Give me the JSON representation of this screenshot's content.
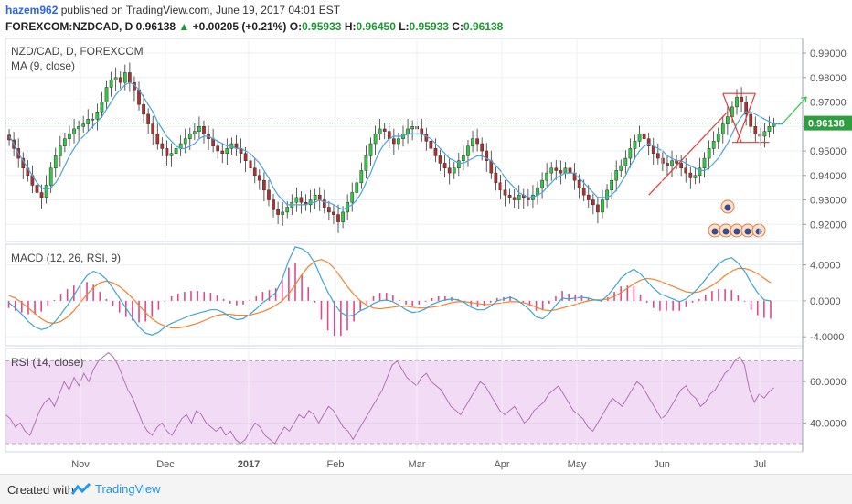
{
  "header": {
    "username": "hazem962",
    "published_text": "published on TradingView.com, June 19, 2017 04:01 EST",
    "symbol_line_prefix": "FOREXCOM:NZDCAD, D",
    "last_price": "0.96138",
    "change": "+0.00205 (+0.21%)",
    "open_label": "O:",
    "open": "0.95933",
    "high_label": "H:",
    "high": "0.96450",
    "low_label": "L:",
    "low": "0.95933",
    "close_label": "C:",
    "close": "0.96138"
  },
  "footer": {
    "created_with": "Created with",
    "brand": "TradingView"
  },
  "colors": {
    "bull": "#2ecc40",
    "bear": "#b03030",
    "ma": "#4aa3df",
    "macd": "#3aa5d8",
    "signal": "#f5802a",
    "hist": "#e0478f",
    "rsi": "#b56fb8",
    "rsi_band": "#f2dcf5",
    "trend": "#e53935",
    "arrow": "#2ecc40"
  },
  "chart_data": [
    {
      "type": "candlestick",
      "title": "NZD/CAD, D, FOREXCOM",
      "indicator_label": "MA (9, close)",
      "y_ticks": [
        "0.92000",
        "0.93000",
        "0.94000",
        "0.95000",
        "0.96000",
        "0.97000",
        "0.98000",
        "0.99000"
      ],
      "ylim": [
        0.913,
        0.996
      ],
      "last_price_label": "0.96138",
      "x_ticks": [
        "Nov",
        "Dec",
        "2017",
        "Feb",
        "Mar",
        "Apr",
        "May",
        "Jun",
        "Jul"
      ],
      "close_series": [
        0.9545,
        0.951,
        0.947,
        0.943,
        0.94,
        0.936,
        0.933,
        0.931,
        0.936,
        0.943,
        0.948,
        0.952,
        0.955,
        0.957,
        0.959,
        0.96,
        0.961,
        0.963,
        0.963,
        0.966,
        0.97,
        0.976,
        0.979,
        0.98,
        0.978,
        0.982,
        0.978,
        0.975,
        0.969,
        0.965,
        0.961,
        0.957,
        0.953,
        0.951,
        0.948,
        0.949,
        0.951,
        0.953,
        0.955,
        0.957,
        0.958,
        0.96,
        0.957,
        0.955,
        0.952,
        0.95,
        0.949,
        0.951,
        0.953,
        0.951,
        0.949,
        0.946,
        0.943,
        0.94,
        0.938,
        0.934,
        0.93,
        0.926,
        0.924,
        0.925,
        0.927,
        0.929,
        0.931,
        0.929,
        0.928,
        0.93,
        0.932,
        0.93,
        0.927,
        0.925,
        0.924,
        0.921,
        0.925,
        0.929,
        0.933,
        0.937,
        0.942,
        0.948,
        0.953,
        0.957,
        0.959,
        0.958,
        0.955,
        0.953,
        0.955,
        0.957,
        0.959,
        0.96,
        0.959,
        0.957,
        0.954,
        0.951,
        0.948,
        0.945,
        0.943,
        0.941,
        0.943,
        0.946,
        0.948,
        0.952,
        0.955,
        0.953,
        0.95,
        0.946,
        0.941,
        0.937,
        0.934,
        0.932,
        0.931,
        0.93,
        0.932,
        0.931,
        0.93,
        0.932,
        0.935,
        0.938,
        0.941,
        0.943,
        0.942,
        0.941,
        0.943,
        0.941,
        0.938,
        0.935,
        0.932,
        0.93,
        0.928,
        0.925,
        0.93,
        0.934,
        0.938,
        0.942,
        0.944,
        0.947,
        0.951,
        0.954,
        0.957,
        0.955,
        0.952,
        0.949,
        0.947,
        0.945,
        0.944,
        0.946,
        0.945,
        0.943,
        0.941,
        0.939,
        0.94,
        0.943,
        0.947,
        0.951,
        0.954,
        0.957,
        0.961,
        0.964,
        0.968,
        0.972,
        0.97,
        0.965,
        0.96,
        0.957,
        0.956,
        0.958,
        0.96,
        0.961
      ],
      "ma_series": [
        0.956,
        0.953,
        0.949,
        0.946,
        0.943,
        0.94,
        0.937,
        0.935,
        0.934,
        0.935,
        0.937,
        0.94,
        0.944,
        0.948,
        0.951,
        0.954,
        0.956,
        0.958,
        0.96,
        0.962,
        0.964,
        0.967,
        0.97,
        0.973,
        0.975,
        0.977,
        0.978,
        0.977,
        0.975,
        0.972,
        0.969,
        0.966,
        0.962,
        0.959,
        0.956,
        0.954,
        0.952,
        0.951,
        0.951,
        0.952,
        0.953,
        0.955,
        0.956,
        0.956,
        0.955,
        0.954,
        0.953,
        0.952,
        0.952,
        0.951,
        0.951,
        0.95,
        0.949,
        0.947,
        0.945,
        0.942,
        0.939,
        0.935,
        0.932,
        0.93,
        0.928,
        0.928,
        0.928,
        0.928,
        0.928,
        0.929,
        0.929,
        0.93,
        0.929,
        0.929,
        0.928,
        0.927,
        0.926,
        0.927,
        0.928,
        0.93,
        0.933,
        0.937,
        0.941,
        0.946,
        0.95,
        0.953,
        0.955,
        0.956,
        0.956,
        0.956,
        0.957,
        0.957,
        0.957,
        0.957,
        0.956,
        0.955,
        0.953,
        0.951,
        0.949,
        0.947,
        0.946,
        0.945,
        0.945,
        0.946,
        0.947,
        0.948,
        0.948,
        0.947,
        0.946,
        0.944,
        0.942,
        0.939,
        0.937,
        0.935,
        0.933,
        0.932,
        0.931,
        0.931,
        0.932,
        0.933,
        0.935,
        0.937,
        0.939,
        0.94,
        0.941,
        0.941,
        0.941,
        0.939,
        0.937,
        0.935,
        0.933,
        0.931,
        0.931,
        0.931,
        0.932,
        0.934,
        0.937,
        0.94,
        0.944,
        0.947,
        0.95,
        0.952,
        0.953,
        0.952,
        0.951,
        0.95,
        0.948,
        0.947,
        0.946,
        0.946,
        0.945,
        0.944,
        0.943,
        0.942,
        0.942,
        0.943,
        0.945,
        0.947,
        0.95,
        0.953,
        0.957,
        0.961,
        0.964,
        0.966,
        0.966,
        0.965,
        0.964,
        0.963,
        0.962,
        0.961,
        0.961,
        0.961
      ]
    },
    {
      "type": "line",
      "title": "MACD (12, 26, RSI, 9)",
      "y_ticks": [
        "4.0000",
        "0.0000",
        "-4.0000"
      ],
      "ylim": [
        -5.0,
        6.3
      ],
      "macd_series": [
        -0.2,
        -0.8,
        -1.5,
        -2.3,
        -2.9,
        -3.2,
        -3.0,
        -2.4,
        -1.5,
        -0.5,
        0.6,
        1.8,
        2.8,
        3.3,
        3.0,
        2.4,
        1.4,
        0.3,
        -0.8,
        -1.9,
        -2.9,
        -3.6,
        -3.8,
        -3.5,
        -2.9,
        -2.5,
        -2.2,
        -1.9,
        -1.6,
        -1.4,
        -1.2,
        -1.0,
        -1.0,
        -1.3,
        -1.8,
        -2.1,
        -2.0,
        -1.5,
        -0.9,
        -0.2,
        0.3,
        0.9,
        2.4,
        4.5,
        6.0,
        5.8,
        5.3,
        4.2,
        2.5,
        1.0,
        -0.3,
        -1.3,
        -1.7,
        -1.6,
        -1.1,
        -0.8,
        -0.3,
        0.0,
        0.1,
        -0.1,
        -0.5,
        -1.0,
        -1.3,
        -1.2,
        -0.9,
        -0.4,
        -0.1,
        0.1,
        0.2,
        0.1,
        -0.2,
        -0.7,
        -1.0,
        -1.0,
        -0.6,
        0.0,
        0.2,
        0.4,
        0.1,
        -0.4,
        -1.0,
        -1.8,
        -2.0,
        -1.4,
        -0.5,
        0.3,
        0.2,
        0.3,
        0.4,
        0.3,
        0.1,
        0.0,
        0.6,
        1.5,
        2.5,
        3.1,
        3.5,
        3.0,
        2.2,
        1.4,
        0.8,
        0.5,
        0.2,
        -0.1,
        0.2,
        0.8,
        1.5,
        2.4,
        3.3,
        4.1,
        4.6,
        4.8,
        4.2,
        3.3,
        2.0,
        0.9,
        0.1,
        0.0
      ],
      "signal_series": [
        0.6,
        0.3,
        -0.2,
        -0.8,
        -1.4,
        -2.0,
        -2.4,
        -2.5,
        -2.3,
        -1.8,
        -1.1,
        -0.2,
        0.7,
        1.5,
        2.0,
        2.2,
        2.0,
        1.6,
        1.0,
        0.3,
        -0.5,
        -1.3,
        -2.0,
        -2.5,
        -2.8,
        -3.0,
        -3.0,
        -2.9,
        -2.7,
        -2.5,
        -2.2,
        -1.9,
        -1.6,
        -1.5,
        -1.5,
        -1.6,
        -1.6,
        -1.6,
        -1.4,
        -1.2,
        -0.9,
        -0.5,
        0.0,
        0.8,
        1.8,
        2.9,
        3.8,
        4.4,
        4.6,
        4.3,
        3.6,
        2.6,
        1.6,
        0.7,
        0.0,
        -0.5,
        -0.8,
        -0.9,
        -0.8,
        -0.7,
        -0.6,
        -0.6,
        -0.7,
        -0.8,
        -0.8,
        -0.7,
        -0.6,
        -0.4,
        -0.2,
        -0.1,
        -0.1,
        -0.2,
        -0.3,
        -0.4,
        -0.4,
        -0.3,
        -0.2,
        -0.1,
        -0.1,
        -0.2,
        -0.4,
        -0.7,
        -1.0,
        -1.1,
        -1.0,
        -0.8,
        -0.6,
        -0.4,
        -0.2,
        0.0,
        0.1,
        0.1,
        0.2,
        0.5,
        0.9,
        1.4,
        1.9,
        2.3,
        2.5,
        2.4,
        2.2,
        1.9,
        1.6,
        1.3,
        1.0,
        0.9,
        1.0,
        1.3,
        1.7,
        2.2,
        2.8,
        3.3,
        3.6,
        3.6,
        3.4,
        3.0,
        2.5,
        2.0
      ],
      "hist_series": [
        -0.8,
        -1.1,
        -1.3,
        -1.5,
        -1.5,
        -1.2,
        -0.6,
        0.1,
        0.8,
        1.3,
        1.7,
        2.0,
        2.1,
        1.8,
        1.0,
        0.2,
        -0.6,
        -1.3,
        -1.8,
        -2.2,
        -2.4,
        -2.3,
        -1.8,
        -1.0,
        -0.1,
        0.5,
        0.8,
        1.0,
        1.1,
        1.1,
        1.0,
        0.9,
        0.6,
        0.2,
        -0.3,
        -0.5,
        -0.4,
        0.1,
        0.5,
        1.0,
        1.2,
        1.4,
        2.4,
        3.7,
        4.2,
        2.9,
        1.5,
        -0.2,
        -2.1,
        -3.3,
        -3.9,
        -3.9,
        -3.3,
        -2.3,
        -1.1,
        -0.3,
        0.5,
        0.9,
        0.9,
        0.6,
        0.1,
        -0.4,
        -0.6,
        -0.4,
        -0.1,
        0.3,
        0.5,
        0.5,
        0.4,
        0.2,
        -0.1,
        -0.5,
        -0.7,
        -0.6,
        -0.2,
        0.3,
        0.4,
        0.5,
        0.2,
        -0.2,
        -0.6,
        -1.1,
        -1.0,
        -0.3,
        0.5,
        1.1,
        0.8,
        0.7,
        0.6,
        0.3,
        0.0,
        -0.1,
        0.4,
        1.0,
        1.6,
        1.7,
        1.6,
        0.7,
        -0.2,
        -0.8,
        -1.1,
        -1.1,
        -1.1,
        -1.1,
        -0.7,
        -0.2,
        0.2,
        0.7,
        1.1,
        1.3,
        1.3,
        1.2,
        0.6,
        -0.1,
        -1.0,
        -1.6,
        -1.9,
        -2.0
      ]
    },
    {
      "type": "line",
      "title": "RSI (14, close)",
      "y_ticks": [
        "60.0000",
        "40.0000"
      ],
      "ylim": [
        26.0,
        76.0
      ],
      "band": [
        30,
        70
      ],
      "rsi_series": [
        44,
        42,
        38,
        40,
        36,
        34,
        40,
        46,
        50,
        52,
        48,
        54,
        60,
        56,
        62,
        58,
        64,
        60,
        66,
        70,
        72,
        74,
        72,
        68,
        62,
        56,
        52,
        46,
        40,
        36,
        34,
        38,
        40,
        36,
        34,
        38,
        42,
        44,
        40,
        46,
        44,
        40,
        38,
        36,
        38,
        34,
        36,
        32,
        30,
        32,
        36,
        40,
        38,
        34,
        32,
        30,
        34,
        38,
        36,
        40,
        44,
        42,
        46,
        44,
        40,
        44,
        48,
        46,
        42,
        38,
        36,
        32,
        36,
        40,
        44,
        48,
        52,
        56,
        62,
        68,
        70,
        66,
        62,
        60,
        58,
        62,
        64,
        60,
        58,
        56,
        52,
        48,
        46,
        44,
        48,
        52,
        56,
        60,
        58,
        54,
        50,
        46,
        44,
        46,
        48,
        44,
        40,
        42,
        46,
        48,
        50,
        54,
        56,
        58,
        54,
        50,
        46,
        44,
        42,
        38,
        36,
        40,
        44,
        48,
        52,
        50,
        48,
        52,
        56,
        60,
        58,
        54,
        50,
        46,
        42,
        44,
        48,
        52,
        56,
        58,
        54,
        52,
        48,
        50,
        54,
        56,
        60,
        64,
        66,
        70,
        72,
        68,
        56,
        50,
        54,
        52,
        55,
        57
      ],
      "rsi_dates_note": ""
    }
  ]
}
